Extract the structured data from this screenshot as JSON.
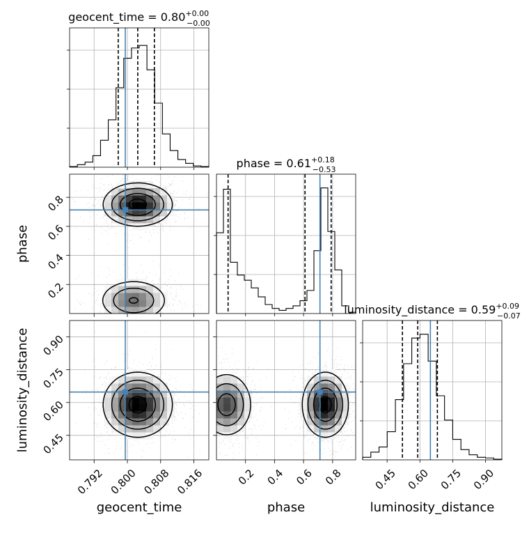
{
  "chart_data": {
    "type": "corner",
    "parameters": [
      "geocent_time",
      "phase",
      "luminosity_distance"
    ],
    "truths": {
      "geocent_time": 0.7995,
      "phase": 0.713,
      "luminosity_distance": 0.648
    },
    "titles": [
      {
        "param": "geocent_time",
        "label": "geocent_time = 0.80",
        "sup": "+0.00",
        "sub": "−0.00"
      },
      {
        "param": "phase",
        "label": "phase = 0.61",
        "sup": "+0.18",
        "sub": "−0.53"
      },
      {
        "param": "luminosity_distance",
        "label": "luminosity_distance = 0.59",
        "sup": "+0.09",
        "sub": "−0.07"
      }
    ],
    "axis_labels": {
      "geocent_time": "geocent_time",
      "phase": "phase",
      "luminosity_distance": "luminosity_distance"
    },
    "ranges": {
      "geocent_time": [
        0.7861,
        0.8196
      ],
      "phase": [
        0.0,
        0.959
      ],
      "luminosity_distance": [
        0.338,
        0.975
      ]
    },
    "ticks": {
      "geocent_time": {
        "values": [
          0.792,
          0.8,
          0.808,
          0.816
        ],
        "labels": [
          "0.792",
          "0.800",
          "0.808",
          "0.816"
        ]
      },
      "phase_x": {
        "values": [
          0.2,
          0.4,
          0.6,
          0.8
        ],
        "labels": [
          "0.2",
          "0.4",
          "0.6",
          "0.8"
        ]
      },
      "phase_y": {
        "values": [
          0.2,
          0.4,
          0.6,
          0.8
        ],
        "labels": [
          "0.2",
          "0.4",
          "0.6",
          "0.8"
        ]
      },
      "luminosity_distance": {
        "values": [
          0.45,
          0.6,
          0.75,
          0.9
        ],
        "labels": [
          "0.45",
          "0.60",
          "0.75",
          "0.90"
        ]
      }
    },
    "quantiles": {
      "geocent_time": [
        0.7978,
        0.8025,
        0.8065
      ],
      "phase": [
        0.08,
        0.61,
        0.79
      ],
      "luminosity_distance": [
        0.52,
        0.59,
        0.68
      ]
    },
    "histograms": {
      "geocent_time": [
        0.005,
        0.02,
        0.04,
        0.09,
        0.21,
        0.37,
        0.62,
        0.85,
        0.93,
        0.95,
        0.76,
        0.5,
        0.26,
        0.13,
        0.06,
        0.03,
        0.01,
        0.005
      ],
      "phase": [
        0.63,
        0.97,
        0.4,
        0.3,
        0.26,
        0.2,
        0.13,
        0.07,
        0.04,
        0.025,
        0.04,
        0.06,
        0.1,
        0.18,
        0.49,
        0.98,
        0.64,
        0.34,
        0.06,
        0.01
      ],
      "luminosity_distance": [
        0.02,
        0.06,
        0.1,
        0.22,
        0.47,
        0.75,
        0.95,
        0.98,
        0.77,
        0.5,
        0.31,
        0.16,
        0.08,
        0.04,
        0.02,
        0.015,
        0.005
      ]
    },
    "density_blobs": {
      "geocent_time_phase": [
        {
          "x": 0.8025,
          "y": 0.75,
          "sx": 0.0042,
          "sy": 0.075,
          "w": 1.0
        },
        {
          "x": 0.8015,
          "y": 0.09,
          "sx": 0.0043,
          "sy": 0.075,
          "w": 0.62
        }
      ],
      "geocent_time_luminosity_distance": [
        {
          "x": 0.8025,
          "y": 0.59,
          "sx": 0.0042,
          "sy": 0.075,
          "w": 1.0
        }
      ],
      "phase_luminosity_distance": [
        {
          "x": 0.75,
          "y": 0.59,
          "sx": 0.08,
          "sy": 0.075,
          "w": 1.0
        },
        {
          "x": 0.07,
          "y": 0.59,
          "sx": 0.09,
          "sy": 0.075,
          "w": 0.75
        }
      ]
    },
    "grid": true,
    "truth_color": "#4682b4",
    "line_color": "#000000"
  }
}
